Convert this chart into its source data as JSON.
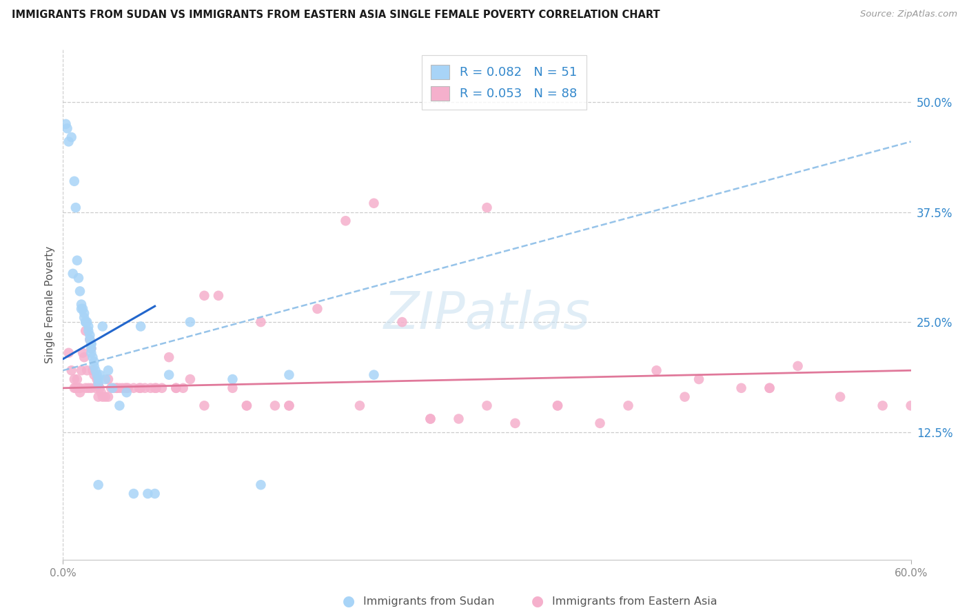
{
  "title": "IMMIGRANTS FROM SUDAN VS IMMIGRANTS FROM EASTERN ASIA SINGLE FEMALE POVERTY CORRELATION CHART",
  "source": "Source: ZipAtlas.com",
  "ylabel": "Single Female Poverty",
  "xlim": [
    0.0,
    0.6
  ],
  "ylim": [
    -0.02,
    0.56
  ],
  "xticks": [
    0.0,
    0.6
  ],
  "xtick_labels": [
    "0.0%",
    "60.0%"
  ],
  "yticks": [
    0.125,
    0.25,
    0.375,
    0.5
  ],
  "ytick_labels": [
    "12.5%",
    "25.0%",
    "37.5%",
    "50.0%"
  ],
  "sudan_R": 0.082,
  "sudan_N": 51,
  "eastern_R": 0.053,
  "eastern_N": 88,
  "sudan_scatter_color": "#a8d4f7",
  "eastern_scatter_color": "#f5b0cc",
  "sudan_line_color": "#2266cc",
  "eastern_line_color": "#e0789a",
  "dashed_line_color": "#90c0e8",
  "legend_text_color": "#3388cc",
  "watermark_text": "ZIPatlas",
  "sudan_line_x0": 0.0,
  "sudan_line_y0": 0.208,
  "sudan_line_x1": 0.065,
  "sudan_line_y1": 0.268,
  "dashed_line_x0": 0.0,
  "dashed_line_y0": 0.195,
  "dashed_line_x1": 0.6,
  "dashed_line_y1": 0.455,
  "eastern_line_x0": 0.0,
  "eastern_line_y0": 0.175,
  "eastern_line_x1": 0.6,
  "eastern_line_y1": 0.195,
  "sudan_x": [
    0.003,
    0.006,
    0.008,
    0.009,
    0.01,
    0.011,
    0.012,
    0.013,
    0.014,
    0.015,
    0.015,
    0.016,
    0.016,
    0.017,
    0.018,
    0.018,
    0.019,
    0.019,
    0.02,
    0.02,
    0.02,
    0.021,
    0.022,
    0.022,
    0.023,
    0.024,
    0.025,
    0.025,
    0.026,
    0.028,
    0.03,
    0.032,
    0.035,
    0.04,
    0.045,
    0.05,
    0.055,
    0.06,
    0.065,
    0.075,
    0.09,
    0.12,
    0.14,
    0.16,
    0.22,
    0.002,
    0.004,
    0.007,
    0.013,
    0.02,
    0.025
  ],
  "sudan_y": [
    0.47,
    0.46,
    0.41,
    0.38,
    0.32,
    0.3,
    0.285,
    0.27,
    0.265,
    0.26,
    0.255,
    0.25,
    0.25,
    0.25,
    0.245,
    0.24,
    0.235,
    0.23,
    0.225,
    0.22,
    0.215,
    0.21,
    0.205,
    0.2,
    0.195,
    0.19,
    0.185,
    0.18,
    0.19,
    0.245,
    0.185,
    0.195,
    0.175,
    0.155,
    0.17,
    0.055,
    0.245,
    0.055,
    0.055,
    0.19,
    0.25,
    0.185,
    0.065,
    0.19,
    0.19,
    0.475,
    0.455,
    0.305,
    0.265,
    0.225,
    0.065
  ],
  "eastern_x": [
    0.004,
    0.006,
    0.008,
    0.009,
    0.01,
    0.011,
    0.012,
    0.013,
    0.014,
    0.015,
    0.016,
    0.017,
    0.018,
    0.019,
    0.02,
    0.021,
    0.022,
    0.023,
    0.024,
    0.025,
    0.026,
    0.027,
    0.028,
    0.03,
    0.032,
    0.034,
    0.036,
    0.038,
    0.04,
    0.042,
    0.044,
    0.046,
    0.05,
    0.054,
    0.058,
    0.062,
    0.066,
    0.07,
    0.075,
    0.08,
    0.085,
    0.09,
    0.1,
    0.11,
    0.12,
    0.13,
    0.14,
    0.15,
    0.16,
    0.18,
    0.2,
    0.22,
    0.24,
    0.26,
    0.28,
    0.3,
    0.32,
    0.35,
    0.38,
    0.4,
    0.42,
    0.45,
    0.48,
    0.5,
    0.52,
    0.55,
    0.58,
    0.6,
    0.008,
    0.012,
    0.016,
    0.02,
    0.025,
    0.032,
    0.038,
    0.045,
    0.055,
    0.065,
    0.08,
    0.1,
    0.13,
    0.16,
    0.21,
    0.26,
    0.3,
    0.35,
    0.44,
    0.5
  ],
  "eastern_y": [
    0.215,
    0.195,
    0.185,
    0.175,
    0.185,
    0.175,
    0.17,
    0.195,
    0.215,
    0.21,
    0.24,
    0.195,
    0.175,
    0.23,
    0.22,
    0.195,
    0.19,
    0.175,
    0.185,
    0.18,
    0.175,
    0.17,
    0.165,
    0.165,
    0.185,
    0.175,
    0.175,
    0.175,
    0.175,
    0.175,
    0.175,
    0.175,
    0.175,
    0.175,
    0.175,
    0.175,
    0.175,
    0.175,
    0.21,
    0.175,
    0.175,
    0.185,
    0.155,
    0.28,
    0.175,
    0.155,
    0.25,
    0.155,
    0.155,
    0.265,
    0.365,
    0.385,
    0.25,
    0.14,
    0.14,
    0.155,
    0.135,
    0.155,
    0.135,
    0.155,
    0.195,
    0.185,
    0.175,
    0.175,
    0.2,
    0.165,
    0.155,
    0.155,
    0.175,
    0.175,
    0.175,
    0.175,
    0.165,
    0.165,
    0.175,
    0.175,
    0.175,
    0.175,
    0.175,
    0.28,
    0.155,
    0.155,
    0.155,
    0.14,
    0.38,
    0.155,
    0.165,
    0.175
  ]
}
